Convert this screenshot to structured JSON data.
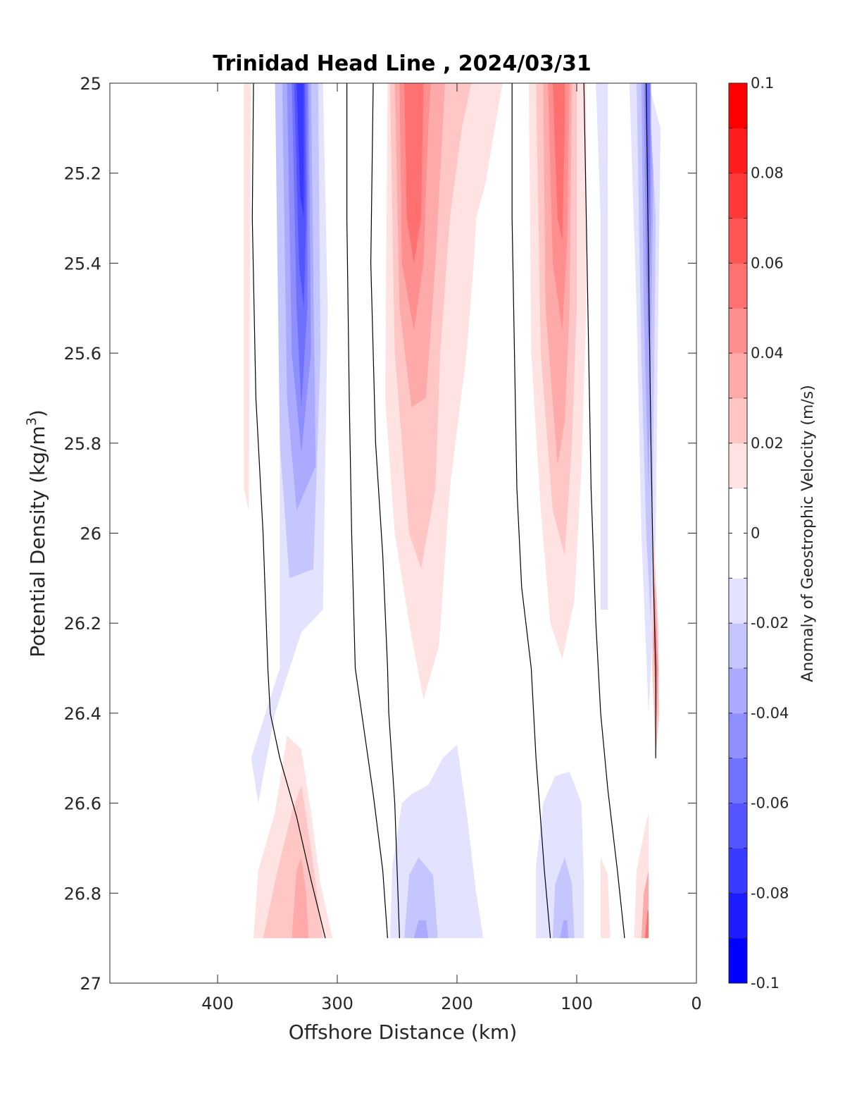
{
  "chart_data": {
    "type": "heatmap",
    "title": "Trinidad Head Line , 2024/03/31",
    "xlabel": "Offshore Distance (km)",
    "ylabel": "Potential Density (kg/m",
    "ylabel_superscript": "3",
    "ylabel_close": ")",
    "xlim": [
      490,
      0
    ],
    "ylim": [
      25,
      27
    ],
    "x_reversed": true,
    "y_reversed": true,
    "x_ticks": [
      "400",
      "300",
      "200",
      "100",
      "0"
    ],
    "x_tick_values": [
      400,
      300,
      200,
      100,
      0
    ],
    "y_ticks": [
      "25",
      "25.2",
      "25.4",
      "25.6",
      "25.8",
      "26",
      "26.2",
      "26.4",
      "26.6",
      "26.8",
      "27"
    ],
    "y_tick_values": [
      25,
      25.2,
      25.4,
      25.6,
      25.8,
      26,
      26.2,
      26.4,
      26.6,
      26.8,
      27
    ],
    "colorbar": {
      "label": "Anomaly of Geostrophic Velocity (m/s)",
      "range": [
        -0.1,
        0.1
      ],
      "levels": 20,
      "colormap": "blue-white-red",
      "ticks": [
        "0.1",
        "0.08",
        "0.06",
        "0.04",
        "0.02",
        "0",
        "-0.02",
        "-0.04",
        "-0.06",
        "-0.08",
        "-0.1"
      ],
      "tick_values": [
        0.1,
        0.08,
        0.06,
        0.04,
        0.02,
        0,
        -0.02,
        -0.04,
        -0.06,
        -0.08,
        -0.1
      ]
    },
    "grid": false,
    "features": [
      {
        "name": "offshore-southward-jet",
        "distance_km": 330,
        "density_range": [
          25.0,
          26.25
        ],
        "peak_value": -0.08
      },
      {
        "name": "northward-core-240km",
        "distance_km": 240,
        "density_range": [
          25.0,
          26.4
        ],
        "peak_value": 0.06
      },
      {
        "name": "northward-core-110km",
        "distance_km": 110,
        "density_range": [
          25.0,
          26.28
        ],
        "peak_value": 0.06
      },
      {
        "name": "nearshore-southward-jet",
        "distance_km": 42,
        "density_range": [
          25.0,
          26.4
        ],
        "peak_value": -0.06
      },
      {
        "name": "deep-northward-330km",
        "distance_km": 330,
        "density_range": [
          26.45,
          26.9
        ],
        "peak_value": 0.03
      },
      {
        "name": "deep-southward-230km",
        "distance_km": 230,
        "density_range": [
          26.5,
          26.9
        ],
        "peak_value": -0.03
      },
      {
        "name": "deep-southward-110km",
        "distance_km": 110,
        "density_range": [
          26.55,
          26.9
        ],
        "peak_value": -0.03
      },
      {
        "name": "nearshore-deep-northward",
        "distance_km": 40,
        "density_range": [
          26.0,
          26.9
        ],
        "peak_value": 0.06
      }
    ]
  }
}
